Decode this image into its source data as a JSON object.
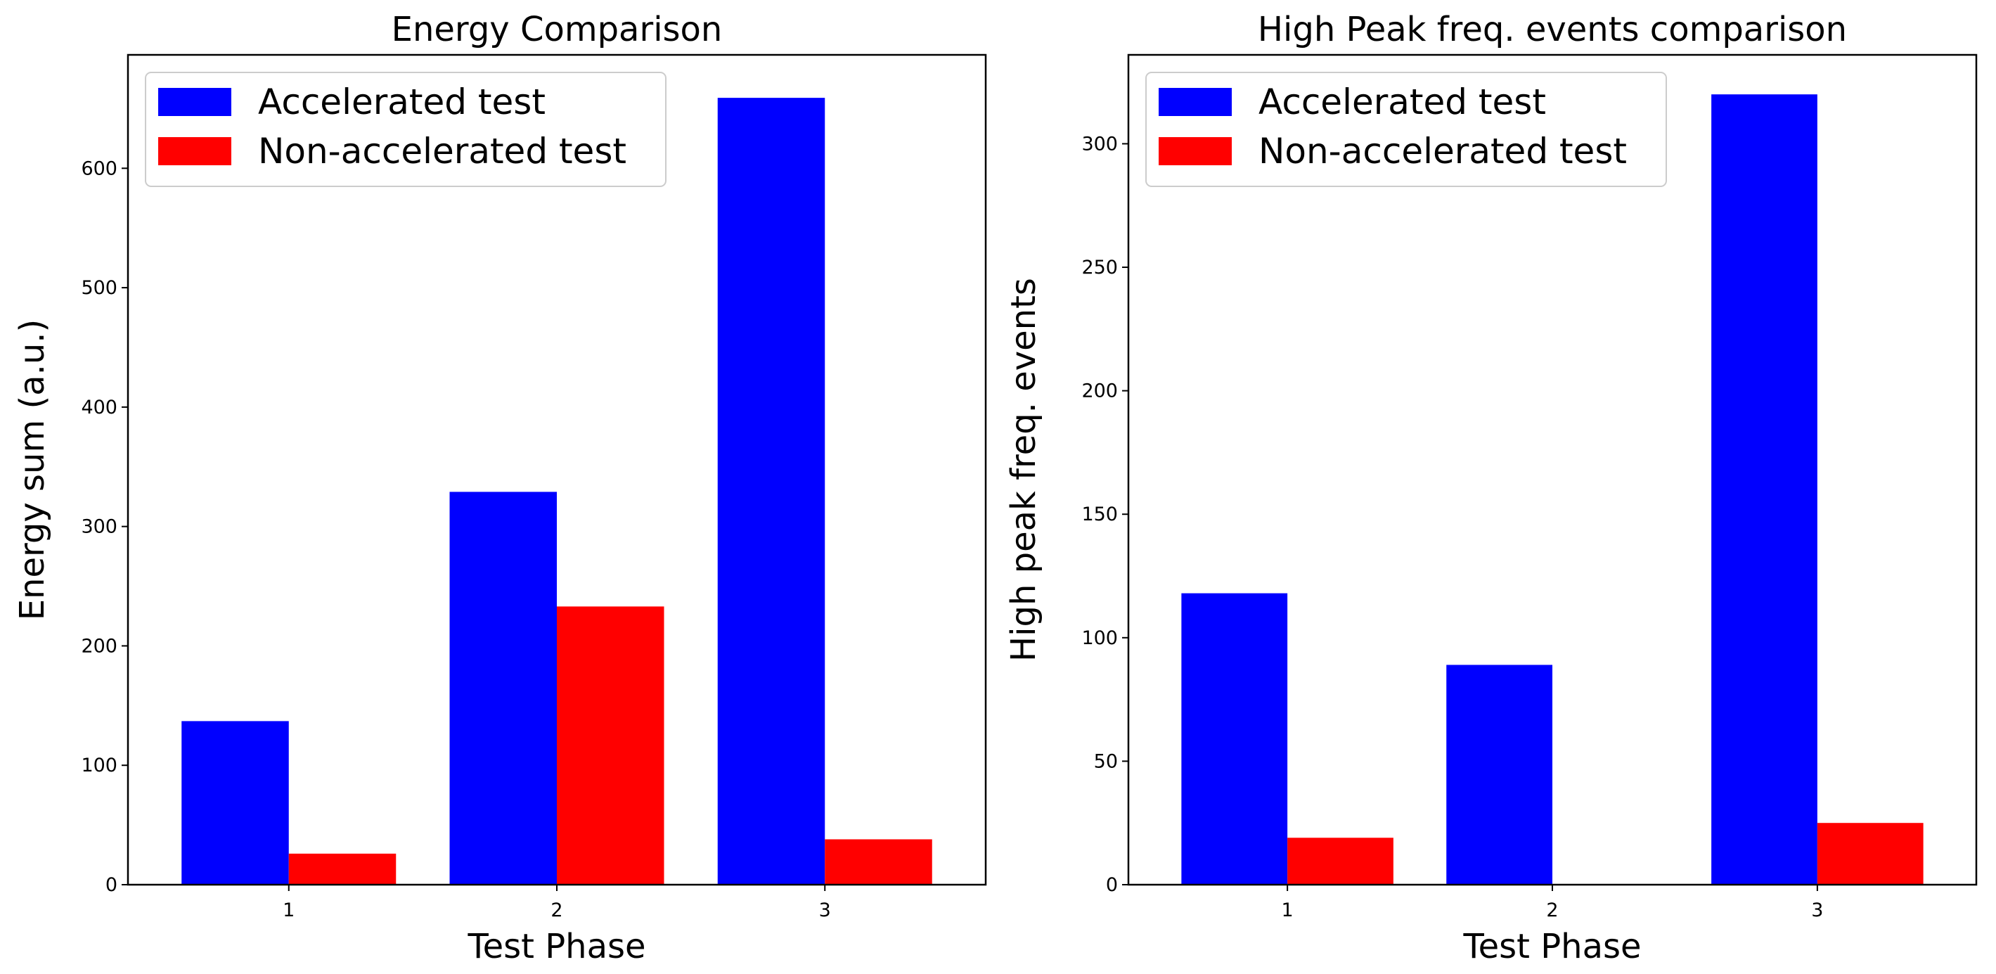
{
  "chart_data": [
    {
      "type": "bar",
      "title": "Energy Comparison",
      "xlabel": "Test Phase",
      "ylabel": "Energy sum (a.u.)",
      "categories": [
        "1",
        "2",
        "3"
      ],
      "ylim": [
        0,
        695
      ],
      "yticks": [
        0,
        100,
        200,
        300,
        400,
        500,
        600
      ],
      "legend_position": "top-left",
      "series": [
        {
          "name": "Accelerated test",
          "color": "#0000ff",
          "values": [
            137,
            329,
            659
          ]
        },
        {
          "name": "Non-accelerated test",
          "color": "#ff0000",
          "values": [
            26,
            233,
            38
          ]
        }
      ]
    },
    {
      "type": "bar",
      "title": "High Peak freq. events comparison",
      "xlabel": "Test Phase",
      "ylabel": "High peak freq. events",
      "categories": [
        "1",
        "2",
        "3"
      ],
      "ylim": [
        0,
        336
      ],
      "yticks": [
        0,
        50,
        100,
        150,
        200,
        250,
        300
      ],
      "legend_position": "top-left",
      "series": [
        {
          "name": "Accelerated test",
          "color": "#0000ff",
          "values": [
            118,
            89,
            320
          ]
        },
        {
          "name": "Non-accelerated test",
          "color": "#ff0000",
          "values": [
            19,
            0,
            25
          ]
        }
      ]
    }
  ]
}
